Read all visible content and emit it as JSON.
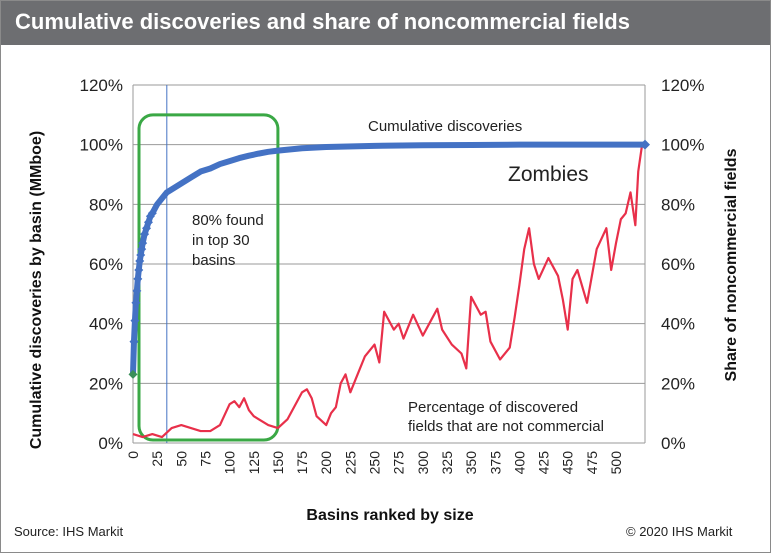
{
  "title": "Cumulative discoveries and share of noncommercial fields",
  "source": "Source: IHS Markit",
  "copyright": "© 2020 IHS Markit",
  "chart_data": {
    "type": "line",
    "title": "Cumulative discoveries and share of noncommercial fields",
    "xlabel": "Basins ranked by size",
    "ylabel_left": "Cumulative discoveries by basin (MMboe)",
    "ylabel_right": "Share of noncommercial fields",
    "xlim": [
      0,
      530
    ],
    "ylim": [
      0,
      120
    ],
    "grid": true,
    "x_ticks": [
      "0",
      "25",
      "50",
      "75",
      "100",
      "125",
      "150",
      "175",
      "200",
      "225",
      "250",
      "275",
      "300",
      "325",
      "350",
      "375",
      "400",
      "425",
      "450",
      "475",
      "500"
    ],
    "y_ticks_left": [
      "0%",
      "20%",
      "40%",
      "60%",
      "80%",
      "100%",
      "120%"
    ],
    "y_ticks_right": [
      "0%",
      "20%",
      "40%",
      "60%",
      "80%",
      "100%",
      "120%"
    ],
    "reference_line_x": 35,
    "highlight_box": {
      "x_range": [
        0,
        150
      ],
      "y_range": [
        0,
        110
      ],
      "color": "#3aa845"
    },
    "annotations": {
      "box_note": [
        "80% found",
        "in top 30",
        "basins"
      ],
      "zombies": "Zombies",
      "cumulative_label": "Cumulative discoveries",
      "noncommercial_note": [
        "Percentage of discovered",
        "fields that are not commercial"
      ]
    },
    "series": [
      {
        "name": "Cumulative discoveries",
        "color": "#4472c4",
        "markers": "diamond",
        "x": [
          0,
          1,
          2,
          3,
          4,
          5,
          6,
          7,
          8,
          9,
          10,
          12,
          14,
          16,
          18,
          20,
          25,
          30,
          35,
          40,
          50,
          60,
          70,
          80,
          90,
          100,
          110,
          120,
          130,
          140,
          150,
          175,
          200,
          250,
          300,
          350,
          400,
          450,
          500,
          530
        ],
        "values": [
          23,
          34,
          41,
          47,
          51,
          55,
          58,
          61,
          63,
          65,
          67,
          70,
          72,
          74,
          76,
          77,
          80,
          82,
          84,
          85,
          87,
          89,
          91,
          92,
          93.5,
          94.5,
          95.5,
          96.3,
          97,
          97.6,
          98,
          98.8,
          99.2,
          99.6,
          99.8,
          99.9,
          100,
          100,
          100,
          100
        ]
      },
      {
        "name": "Percentage of discovered fields that are not commercial",
        "color": "#e8304a",
        "x": [
          0,
          10,
          20,
          30,
          40,
          50,
          60,
          70,
          80,
          90,
          100,
          105,
          110,
          115,
          120,
          125,
          130,
          140,
          150,
          160,
          170,
          175,
          180,
          185,
          190,
          200,
          205,
          210,
          215,
          220,
          225,
          230,
          240,
          250,
          255,
          260,
          270,
          275,
          280,
          290,
          300,
          310,
          315,
          320,
          330,
          340,
          345,
          350,
          360,
          365,
          370,
          380,
          390,
          395,
          400,
          405,
          410,
          415,
          420,
          430,
          440,
          445,
          450,
          455,
          460,
          470,
          480,
          490,
          495,
          500,
          505,
          510,
          515,
          520,
          523,
          527,
          530
        ],
        "values": [
          3,
          2,
          3,
          2,
          5,
          6,
          5,
          4,
          4,
          6,
          13,
          14,
          12,
          15,
          11,
          9,
          8,
          6,
          5,
          8,
          14,
          17,
          18,
          15,
          9,
          6,
          10,
          12,
          20,
          23,
          17,
          21,
          29,
          33,
          27,
          44,
          38,
          40,
          35,
          43,
          36,
          42,
          45,
          38,
          33,
          30,
          25,
          49,
          43,
          44,
          34,
          28,
          32,
          42,
          53,
          65,
          72,
          60,
          55,
          62,
          56,
          48,
          38,
          55,
          58,
          47,
          65,
          72,
          58,
          67,
          75,
          77,
          84,
          73,
          91,
          100,
          100
        ]
      }
    ]
  }
}
